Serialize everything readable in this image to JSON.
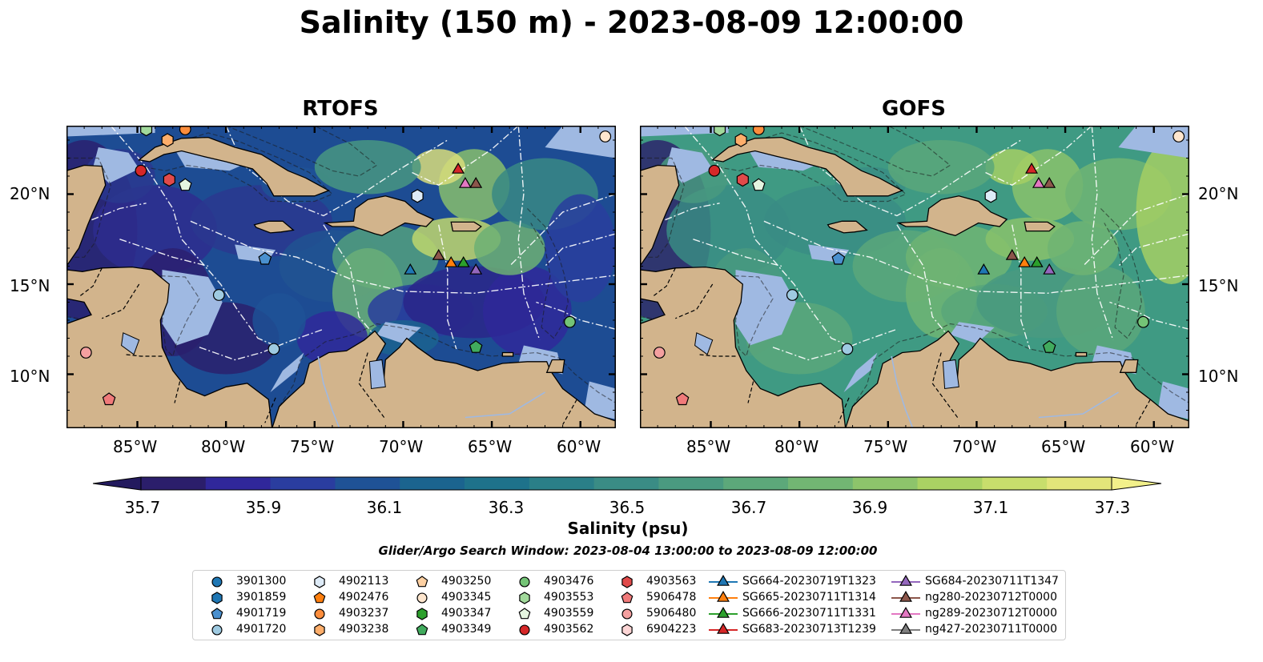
{
  "title": "Salinity (150 m) - 2023-08-09 12:00:00",
  "panels": [
    {
      "title": "RTOFS",
      "kind": "rtofs"
    },
    {
      "title": "GOFS",
      "kind": "gofs"
    }
  ],
  "axes": {
    "lat_ticks": [
      "20°N",
      "15°N",
      "10°N"
    ],
    "lon_ticks": [
      "85°W",
      "80°W",
      "75°W",
      "70°W",
      "65°W",
      "60°W"
    ],
    "lat_range": [
      7,
      23.8
    ],
    "lon_range": [
      -89,
      -58
    ]
  },
  "colorbar": {
    "label": "Salinity (psu)",
    "ticks": [
      "35.7",
      "35.9",
      "36.1",
      "36.3",
      "36.5",
      "36.7",
      "36.9",
      "37.1",
      "37.3"
    ],
    "range": [
      35.7,
      37.3
    ],
    "extend": "both",
    "colors": [
      "#2b1e6b",
      "#30279a",
      "#2a3d9f",
      "#1f5296",
      "#1b648f",
      "#1e728b",
      "#2a7f88",
      "#3a8c85",
      "#4a9a80",
      "#5ca87a",
      "#72b673",
      "#8dc46b",
      "#aad263",
      "#c8de6c",
      "#e3e57a"
    ]
  },
  "search_window": "Glider/Argo Search Window: 2023-08-04 13:00:00 to 2023-08-09 12:00:00",
  "land_color": "#d2b48c",
  "ocean_color": "#9fb9e2",
  "legend": [
    {
      "label": "3901300",
      "shape": "circle",
      "color": "#1f77b4"
    },
    {
      "label": "3901859",
      "shape": "hexagon",
      "color": "#1f77b4"
    },
    {
      "label": "4901719",
      "shape": "pentagon",
      "color": "#4a90cf"
    },
    {
      "label": "4901720",
      "shape": "circle",
      "color": "#9ecae1"
    },
    {
      "label": "4902113",
      "shape": "hexagon",
      "color": "#deebf7"
    },
    {
      "label": "4902476",
      "shape": "pentagon",
      "color": "#ff7f0e"
    },
    {
      "label": "4903237",
      "shape": "circle",
      "color": "#fd8d3c"
    },
    {
      "label": "4903238",
      "shape": "hexagon",
      "color": "#fdae6b"
    },
    {
      "label": "4903250",
      "shape": "pentagon",
      "color": "#fdd0a2"
    },
    {
      "label": "4903345",
      "shape": "circle",
      "color": "#fee6ce"
    },
    {
      "label": "4903347",
      "shape": "hexagon",
      "color": "#2ca02c"
    },
    {
      "label": "4903349",
      "shape": "pentagon",
      "color": "#41ab5d"
    },
    {
      "label": "4903476",
      "shape": "circle",
      "color": "#74c476"
    },
    {
      "label": "4903553",
      "shape": "hexagon",
      "color": "#a1d99b"
    },
    {
      "label": "4903559",
      "shape": "pentagon",
      "color": "#e5f5e0"
    },
    {
      "label": "4903562",
      "shape": "circle",
      "color": "#d62728"
    },
    {
      "label": "4903563",
      "shape": "hexagon",
      "color": "#e04a4a"
    },
    {
      "label": "5906478",
      "shape": "pentagon",
      "color": "#f07a7a"
    },
    {
      "label": "5906480",
      "shape": "circle",
      "color": "#f4a0a0"
    },
    {
      "label": "6904223",
      "shape": "hexagon",
      "color": "#fcd5d5"
    },
    {
      "label": "SG664-20230719T1323",
      "shape": "triangle",
      "color": "#1f77b4"
    },
    {
      "label": "SG665-20230711T1314",
      "shape": "triangle",
      "color": "#ff7f0e"
    },
    {
      "label": "SG666-20230711T1331",
      "shape": "triangle",
      "color": "#2ca02c"
    },
    {
      "label": "SG683-20230713T1239",
      "shape": "triangle",
      "color": "#d62728"
    },
    {
      "label": "SG684-20230711T1347",
      "shape": "triangle",
      "color": "#9467bd"
    },
    {
      "label": "ng280-20230712T0000",
      "shape": "triangle",
      "color": "#8c564b"
    },
    {
      "label": "ng289-20230712T0000",
      "shape": "triangle",
      "color": "#e377c2"
    },
    {
      "label": "ng427-20230711T0000",
      "shape": "triangle",
      "color": "#7f7f7f"
    }
  ],
  "markers": [
    {
      "lon": -84.5,
      "lat": 23.6,
      "shape": "hexagon",
      "color": "#a1d99b"
    },
    {
      "lon": -83.3,
      "lat": 23.0,
      "shape": "hexagon",
      "color": "#fdae6b"
    },
    {
      "lon": -82.3,
      "lat": 23.6,
      "shape": "circle",
      "color": "#fd8d3c"
    },
    {
      "lon": -84.8,
      "lat": 21.3,
      "shape": "circle",
      "color": "#d62728"
    },
    {
      "lon": -83.2,
      "lat": 20.8,
      "shape": "hexagon",
      "color": "#e04a4a"
    },
    {
      "lon": -82.3,
      "lat": 20.5,
      "shape": "pentagon",
      "color": "#e5f5e0"
    },
    {
      "lon": -69.2,
      "lat": 19.9,
      "shape": "hexagon",
      "color": "#deebf7"
    },
    {
      "lon": -77.8,
      "lat": 16.4,
      "shape": "pentagon",
      "color": "#4a90cf"
    },
    {
      "lon": -80.4,
      "lat": 14.4,
      "shape": "circle",
      "color": "#9ecae1"
    },
    {
      "lon": -77.3,
      "lat": 11.4,
      "shape": "circle",
      "color": "#9ecae1"
    },
    {
      "lon": -87.9,
      "lat": 11.2,
      "shape": "circle",
      "color": "#f4a0a0"
    },
    {
      "lon": -86.6,
      "lat": 8.6,
      "shape": "pentagon",
      "color": "#f07a7a"
    },
    {
      "lon": -65.9,
      "lat": 11.5,
      "shape": "pentagon",
      "color": "#41ab5d"
    },
    {
      "lon": -60.6,
      "lat": 12.9,
      "shape": "circle",
      "color": "#74c476"
    },
    {
      "lon": -58.6,
      "lat": 23.2,
      "shape": "circle",
      "color": "#fee6ce"
    },
    {
      "lon": -66.9,
      "lat": 21.4,
      "shape": "triangle",
      "color": "#d62728"
    },
    {
      "lon": -66.5,
      "lat": 20.6,
      "shape": "triangle",
      "color": "#e377c2"
    },
    {
      "lon": -65.9,
      "lat": 20.6,
      "shape": "triangle",
      "color": "#8c564b"
    },
    {
      "lon": -69.6,
      "lat": 15.8,
      "shape": "triangle",
      "color": "#1f77b4"
    },
    {
      "lon": -68.0,
      "lat": 16.6,
      "shape": "triangle",
      "color": "#8c564b"
    },
    {
      "lon": -67.3,
      "lat": 16.2,
      "shape": "triangle",
      "color": "#ff7f0e"
    },
    {
      "lon": -66.6,
      "lat": 16.2,
      "shape": "triangle",
      "color": "#2ca02c"
    },
    {
      "lon": -65.9,
      "lat": 15.8,
      "shape": "triangle",
      "color": "#9467bd"
    }
  ]
}
